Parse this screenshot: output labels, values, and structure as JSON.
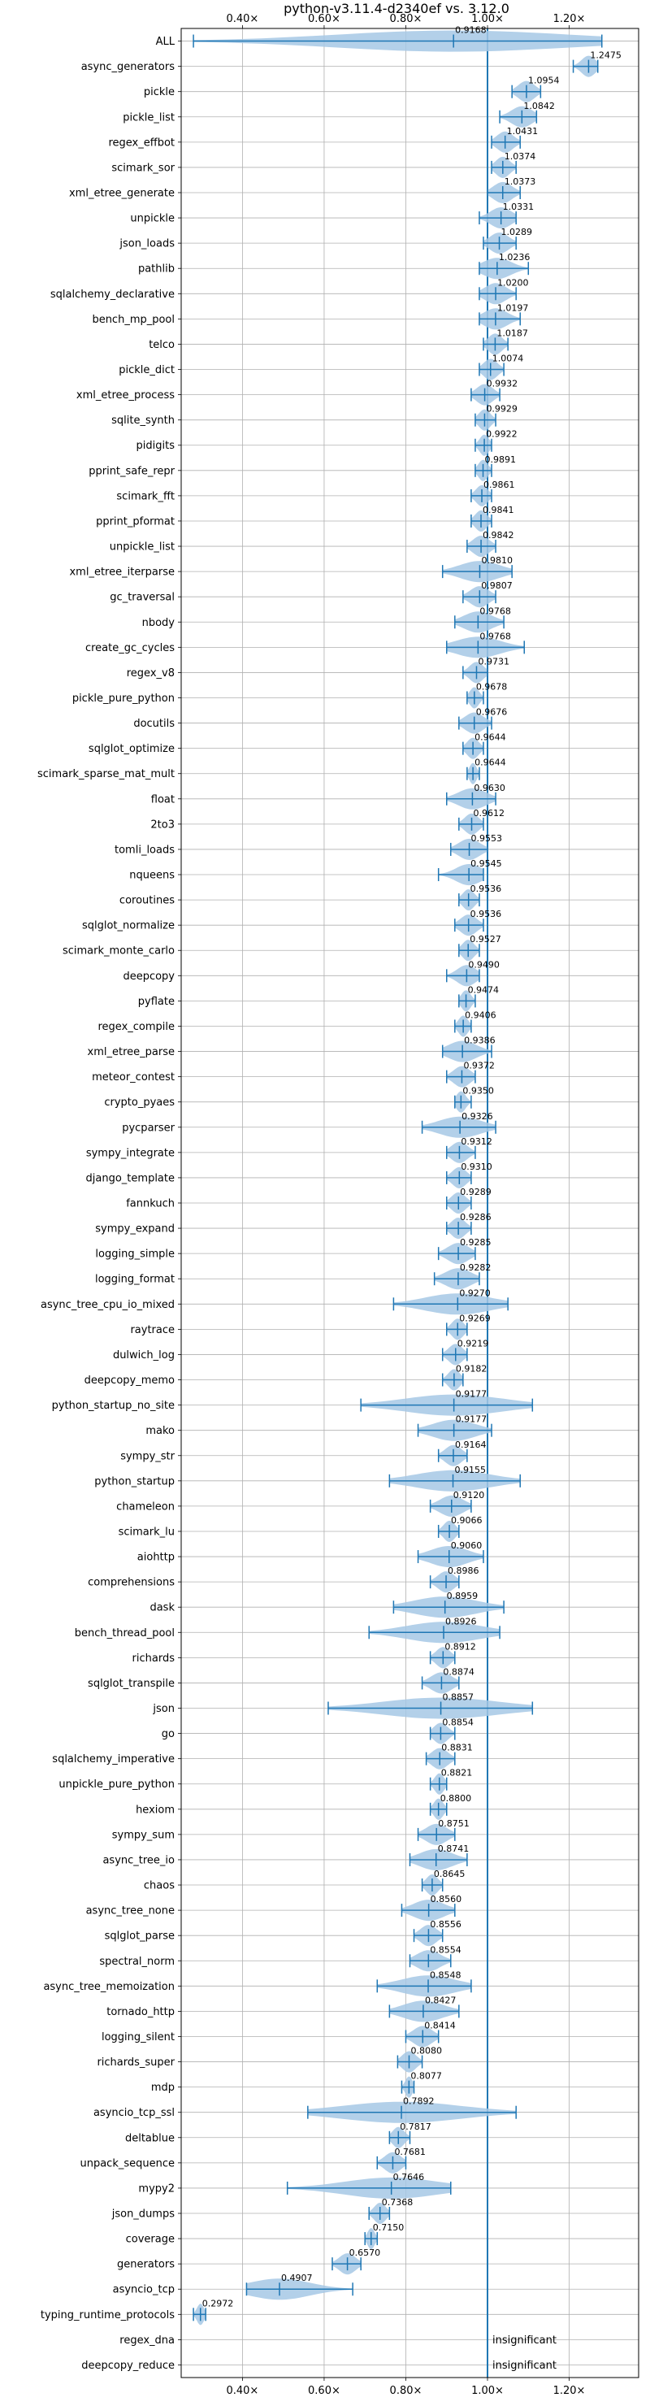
{
  "chart_data": {
    "type": "violin",
    "title": "python-v3.11.4-d2340ef vs. 3.12.0",
    "xlim": [
      0.25,
      1.37
    ],
    "x_ticks": [
      0.4,
      0.6,
      0.8,
      1.0,
      1.2
    ],
    "x_tick_labels": [
      "0.40×",
      "0.60×",
      "0.80×",
      "1.00×",
      "1.20×"
    ],
    "grid": true,
    "reference_line": 1.0,
    "color": "#1f77b4",
    "fill_color": "#a6c8e5",
    "benchmarks": [
      {
        "name": "ALL",
        "value": 0.9168,
        "label": "0.9168",
        "min": 0.28,
        "max": 1.28
      },
      {
        "name": "async_generators",
        "value": 1.2475,
        "label": "1.2475",
        "min": 1.21,
        "max": 1.27
      },
      {
        "name": "pickle",
        "value": 1.0954,
        "label": "1.0954",
        "min": 1.06,
        "max": 1.13
      },
      {
        "name": "pickle_list",
        "value": 1.0842,
        "label": "1.0842",
        "min": 1.03,
        "max": 1.12
      },
      {
        "name": "regex_effbot",
        "value": 1.0431,
        "label": "1.0431",
        "min": 1.01,
        "max": 1.08
      },
      {
        "name": "scimark_sor",
        "value": 1.0374,
        "label": "1.0374",
        "min": 1.01,
        "max": 1.07
      },
      {
        "name": "xml_etree_generate",
        "value": 1.0373,
        "label": "1.0373",
        "min": 1.0,
        "max": 1.08
      },
      {
        "name": "unpickle",
        "value": 1.0331,
        "label": "1.0331",
        "min": 0.98,
        "max": 1.07
      },
      {
        "name": "json_loads",
        "value": 1.0289,
        "label": "1.0289",
        "min": 0.99,
        "max": 1.07
      },
      {
        "name": "pathlib",
        "value": 1.0236,
        "label": "1.0236",
        "min": 0.98,
        "max": 1.1
      },
      {
        "name": "sqlalchemy_declarative",
        "value": 1.02,
        "label": "1.0200",
        "min": 0.98,
        "max": 1.07
      },
      {
        "name": "bench_mp_pool",
        "value": 1.0197,
        "label": "1.0197",
        "min": 0.98,
        "max": 1.08
      },
      {
        "name": "telco",
        "value": 1.0187,
        "label": "1.0187",
        "min": 0.99,
        "max": 1.05
      },
      {
        "name": "pickle_dict",
        "value": 1.0074,
        "label": "1.0074",
        "min": 0.98,
        "max": 1.04
      },
      {
        "name": "xml_etree_process",
        "value": 0.9932,
        "label": "0.9932",
        "min": 0.96,
        "max": 1.03
      },
      {
        "name": "sqlite_synth",
        "value": 0.9929,
        "label": "0.9929",
        "min": 0.97,
        "max": 1.02
      },
      {
        "name": "pidigits",
        "value": 0.9922,
        "label": "0.9922",
        "min": 0.97,
        "max": 1.01
      },
      {
        "name": "pprint_safe_repr",
        "value": 0.9891,
        "label": "0.9891",
        "min": 0.97,
        "max": 1.01
      },
      {
        "name": "scimark_fft",
        "value": 0.9861,
        "label": "0.9861",
        "min": 0.96,
        "max": 1.01
      },
      {
        "name": "pprint_pformat",
        "value": 0.9841,
        "label": "0.9841",
        "min": 0.96,
        "max": 1.01
      },
      {
        "name": "unpickle_list",
        "value": 0.9842,
        "label": "0.9842",
        "min": 0.95,
        "max": 1.02
      },
      {
        "name": "xml_etree_iterparse",
        "value": 0.981,
        "label": "0.9810",
        "min": 0.89,
        "max": 1.06
      },
      {
        "name": "gc_traversal",
        "value": 0.9807,
        "label": "0.9807",
        "min": 0.94,
        "max": 1.02
      },
      {
        "name": "nbody",
        "value": 0.9768,
        "label": "0.9768",
        "min": 0.92,
        "max": 1.04
      },
      {
        "name": "create_gc_cycles",
        "value": 0.9768,
        "label": "0.9768",
        "min": 0.9,
        "max": 1.09
      },
      {
        "name": "regex_v8",
        "value": 0.9731,
        "label": "0.9731",
        "min": 0.94,
        "max": 1.0
      },
      {
        "name": "pickle_pure_python",
        "value": 0.9678,
        "label": "0.9678",
        "min": 0.95,
        "max": 0.99
      },
      {
        "name": "docutils",
        "value": 0.9676,
        "label": "0.9676",
        "min": 0.93,
        "max": 1.01
      },
      {
        "name": "sqlglot_optimize",
        "value": 0.9644,
        "label": "0.9644",
        "min": 0.94,
        "max": 0.99
      },
      {
        "name": "scimark_sparse_mat_mult",
        "value": 0.9644,
        "label": "0.9644",
        "min": 0.95,
        "max": 0.98
      },
      {
        "name": "float",
        "value": 0.963,
        "label": "0.9630",
        "min": 0.9,
        "max": 1.02
      },
      {
        "name": "2to3",
        "value": 0.9612,
        "label": "0.9612",
        "min": 0.93,
        "max": 0.99
      },
      {
        "name": "tomli_loads",
        "value": 0.9553,
        "label": "0.9553",
        "min": 0.91,
        "max": 1.0
      },
      {
        "name": "nqueens",
        "value": 0.9545,
        "label": "0.9545",
        "min": 0.88,
        "max": 0.99
      },
      {
        "name": "coroutines",
        "value": 0.9536,
        "label": "0.9536",
        "min": 0.93,
        "max": 0.98
      },
      {
        "name": "sqlglot_normalize",
        "value": 0.9536,
        "label": "0.9536",
        "min": 0.92,
        "max": 0.99
      },
      {
        "name": "scimark_monte_carlo",
        "value": 0.9527,
        "label": "0.9527",
        "min": 0.93,
        "max": 0.98
      },
      {
        "name": "deepcopy",
        "value": 0.949,
        "label": "0.9490",
        "min": 0.9,
        "max": 0.98
      },
      {
        "name": "pyflate",
        "value": 0.9474,
        "label": "0.9474",
        "min": 0.93,
        "max": 0.97
      },
      {
        "name": "regex_compile",
        "value": 0.9406,
        "label": "0.9406",
        "min": 0.92,
        "max": 0.96
      },
      {
        "name": "xml_etree_parse",
        "value": 0.9386,
        "label": "0.9386",
        "min": 0.89,
        "max": 1.01
      },
      {
        "name": "meteor_contest",
        "value": 0.9372,
        "label": "0.9372",
        "min": 0.9,
        "max": 0.97
      },
      {
        "name": "crypto_pyaes",
        "value": 0.935,
        "label": "0.9350",
        "min": 0.92,
        "max": 0.96
      },
      {
        "name": "pycparser",
        "value": 0.9326,
        "label": "0.9326",
        "min": 0.84,
        "max": 1.02
      },
      {
        "name": "sympy_integrate",
        "value": 0.9312,
        "label": "0.9312",
        "min": 0.9,
        "max": 0.97
      },
      {
        "name": "django_template",
        "value": 0.931,
        "label": "0.9310",
        "min": 0.9,
        "max": 0.96
      },
      {
        "name": "fannkuch",
        "value": 0.9289,
        "label": "0.9289",
        "min": 0.9,
        "max": 0.96
      },
      {
        "name": "sympy_expand",
        "value": 0.9286,
        "label": "0.9286",
        "min": 0.9,
        "max": 0.96
      },
      {
        "name": "logging_simple",
        "value": 0.9285,
        "label": "0.9285",
        "min": 0.88,
        "max": 0.97
      },
      {
        "name": "logging_format",
        "value": 0.9282,
        "label": "0.9282",
        "min": 0.87,
        "max": 0.98
      },
      {
        "name": "async_tree_cpu_io_mixed",
        "value": 0.927,
        "label": "0.9270",
        "min": 0.77,
        "max": 1.05
      },
      {
        "name": "raytrace",
        "value": 0.9269,
        "label": "0.9269",
        "min": 0.9,
        "max": 0.95
      },
      {
        "name": "dulwich_log",
        "value": 0.9219,
        "label": "0.9219",
        "min": 0.89,
        "max": 0.95
      },
      {
        "name": "deepcopy_memo",
        "value": 0.9182,
        "label": "0.9182",
        "min": 0.89,
        "max": 0.94
      },
      {
        "name": "python_startup_no_site",
        "value": 0.9177,
        "label": "0.9177",
        "min": 0.69,
        "max": 1.11
      },
      {
        "name": "mako",
        "value": 0.9177,
        "label": "0.9177",
        "min": 0.83,
        "max": 1.01
      },
      {
        "name": "sympy_str",
        "value": 0.9164,
        "label": "0.9164",
        "min": 0.88,
        "max": 0.95
      },
      {
        "name": "python_startup",
        "value": 0.9155,
        "label": "0.9155",
        "min": 0.76,
        "max": 1.08
      },
      {
        "name": "chameleon",
        "value": 0.912,
        "label": "0.9120",
        "min": 0.86,
        "max": 0.96
      },
      {
        "name": "scimark_lu",
        "value": 0.9066,
        "label": "0.9066",
        "min": 0.88,
        "max": 0.93
      },
      {
        "name": "aiohttp",
        "value": 0.906,
        "label": "0.9060",
        "min": 0.83,
        "max": 0.99
      },
      {
        "name": "comprehensions",
        "value": 0.8986,
        "label": "0.8986",
        "min": 0.86,
        "max": 0.93
      },
      {
        "name": "dask",
        "value": 0.8959,
        "label": "0.8959",
        "min": 0.77,
        "max": 1.04
      },
      {
        "name": "bench_thread_pool",
        "value": 0.8926,
        "label": "0.8926",
        "min": 0.71,
        "max": 1.03
      },
      {
        "name": "richards",
        "value": 0.8912,
        "label": "0.8912",
        "min": 0.86,
        "max": 0.92
      },
      {
        "name": "sqlglot_transpile",
        "value": 0.8874,
        "label": "0.8874",
        "min": 0.84,
        "max": 0.93
      },
      {
        "name": "json",
        "value": 0.8857,
        "label": "0.8857",
        "min": 0.61,
        "max": 1.11
      },
      {
        "name": "go",
        "value": 0.8854,
        "label": "0.8854",
        "min": 0.86,
        "max": 0.92
      },
      {
        "name": "sqlalchemy_imperative",
        "value": 0.8831,
        "label": "0.8831",
        "min": 0.85,
        "max": 0.92
      },
      {
        "name": "unpickle_pure_python",
        "value": 0.8821,
        "label": "0.8821",
        "min": 0.86,
        "max": 0.9
      },
      {
        "name": "hexiom",
        "value": 0.88,
        "label": "0.8800",
        "min": 0.86,
        "max": 0.9
      },
      {
        "name": "sympy_sum",
        "value": 0.8751,
        "label": "0.8751",
        "min": 0.83,
        "max": 0.92
      },
      {
        "name": "async_tree_io",
        "value": 0.8741,
        "label": "0.8741",
        "min": 0.81,
        "max": 0.95
      },
      {
        "name": "chaos",
        "value": 0.8645,
        "label": "0.8645",
        "min": 0.84,
        "max": 0.89
      },
      {
        "name": "async_tree_none",
        "value": 0.856,
        "label": "0.8560",
        "min": 0.79,
        "max": 0.92
      },
      {
        "name": "sqlglot_parse",
        "value": 0.8556,
        "label": "0.8556",
        "min": 0.82,
        "max": 0.89
      },
      {
        "name": "spectral_norm",
        "value": 0.8554,
        "label": "0.8554",
        "min": 0.81,
        "max": 0.91
      },
      {
        "name": "async_tree_memoization",
        "value": 0.8548,
        "label": "0.8548",
        "min": 0.73,
        "max": 0.96
      },
      {
        "name": "tornado_http",
        "value": 0.8427,
        "label": "0.8427",
        "min": 0.76,
        "max": 0.93
      },
      {
        "name": "logging_silent",
        "value": 0.8414,
        "label": "0.8414",
        "min": 0.8,
        "max": 0.88
      },
      {
        "name": "richards_super",
        "value": 0.808,
        "label": "0.8080",
        "min": 0.78,
        "max": 0.84
      },
      {
        "name": "mdp",
        "value": 0.8077,
        "label": "0.8077",
        "min": 0.79,
        "max": 0.82
      },
      {
        "name": "asyncio_tcp_ssl",
        "value": 0.7892,
        "label": "0.7892",
        "min": 0.56,
        "max": 1.07
      },
      {
        "name": "deltablue",
        "value": 0.7817,
        "label": "0.7817",
        "min": 0.76,
        "max": 0.81
      },
      {
        "name": "unpack_sequence",
        "value": 0.7681,
        "label": "0.7681",
        "min": 0.73,
        "max": 0.8
      },
      {
        "name": "mypy2",
        "value": 0.7646,
        "label": "0.7646",
        "min": 0.51,
        "max": 0.91
      },
      {
        "name": "json_dumps",
        "value": 0.7368,
        "label": "0.7368",
        "min": 0.71,
        "max": 0.76
      },
      {
        "name": "coverage",
        "value": 0.715,
        "label": "0.7150",
        "min": 0.7,
        "max": 0.73
      },
      {
        "name": "generators",
        "value": 0.657,
        "label": "0.6570",
        "min": 0.62,
        "max": 0.69
      },
      {
        "name": "asyncio_tcp",
        "value": 0.4907,
        "label": "0.4907",
        "min": 0.41,
        "max": 0.67
      },
      {
        "name": "typing_runtime_protocols",
        "value": 0.2972,
        "label": "0.2972",
        "min": 0.28,
        "max": 0.31
      },
      {
        "name": "regex_dna",
        "value": null,
        "label": "insignificant"
      },
      {
        "name": "deepcopy_reduce",
        "value": null,
        "label": "insignificant"
      }
    ]
  }
}
